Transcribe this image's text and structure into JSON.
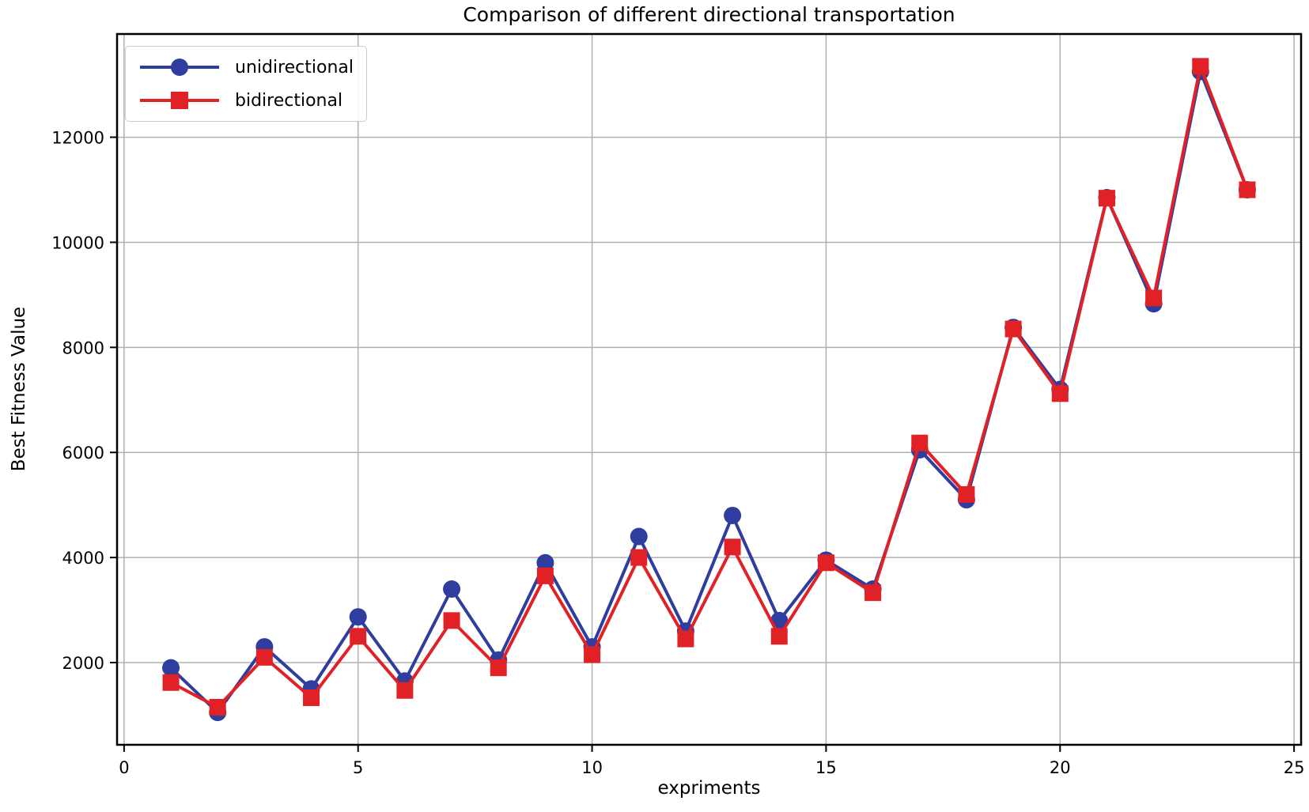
{
  "chart_data": {
    "type": "line",
    "title": "Comparison of different directional transportation",
    "xlabel": "expriments",
    "ylabel": "Best Fitness Value",
    "x": [
      1,
      2,
      3,
      4,
      5,
      6,
      7,
      8,
      9,
      10,
      11,
      12,
      13,
      14,
      15,
      16,
      17,
      18,
      19,
      20,
      21,
      22,
      23,
      24
    ],
    "series": [
      {
        "name": "unidirectional",
        "color": "#2e3d9e",
        "marker": "circle",
        "values": [
          1900,
          1050,
          2300,
          1500,
          2870,
          1650,
          3400,
          2050,
          3900,
          2300,
          4400,
          2600,
          4800,
          2800,
          3950,
          3400,
          6050,
          5100,
          8380,
          7200,
          10850,
          8830,
          13250,
          11000
        ]
      },
      {
        "name": "bidirectional",
        "color": "#e02226",
        "marker": "square",
        "values": [
          1620,
          1150,
          2100,
          1330,
          2500,
          1470,
          2800,
          1900,
          3650,
          2150,
          4000,
          2450,
          4200,
          2500,
          3900,
          3330,
          6180,
          5200,
          8350,
          7120,
          10840,
          8940,
          13350,
          11000
        ]
      }
    ],
    "xlim": [
      -0.15,
      25.15
    ],
    "ylim": [
      435,
      13965
    ],
    "xticks": [
      0,
      5,
      10,
      15,
      20,
      25
    ],
    "yticks": [
      2000,
      4000,
      6000,
      8000,
      10000,
      12000
    ],
    "grid": true,
    "legend_position": "upper left",
    "grid_color": "#b0b0b0",
    "spine_color": "#000000"
  }
}
